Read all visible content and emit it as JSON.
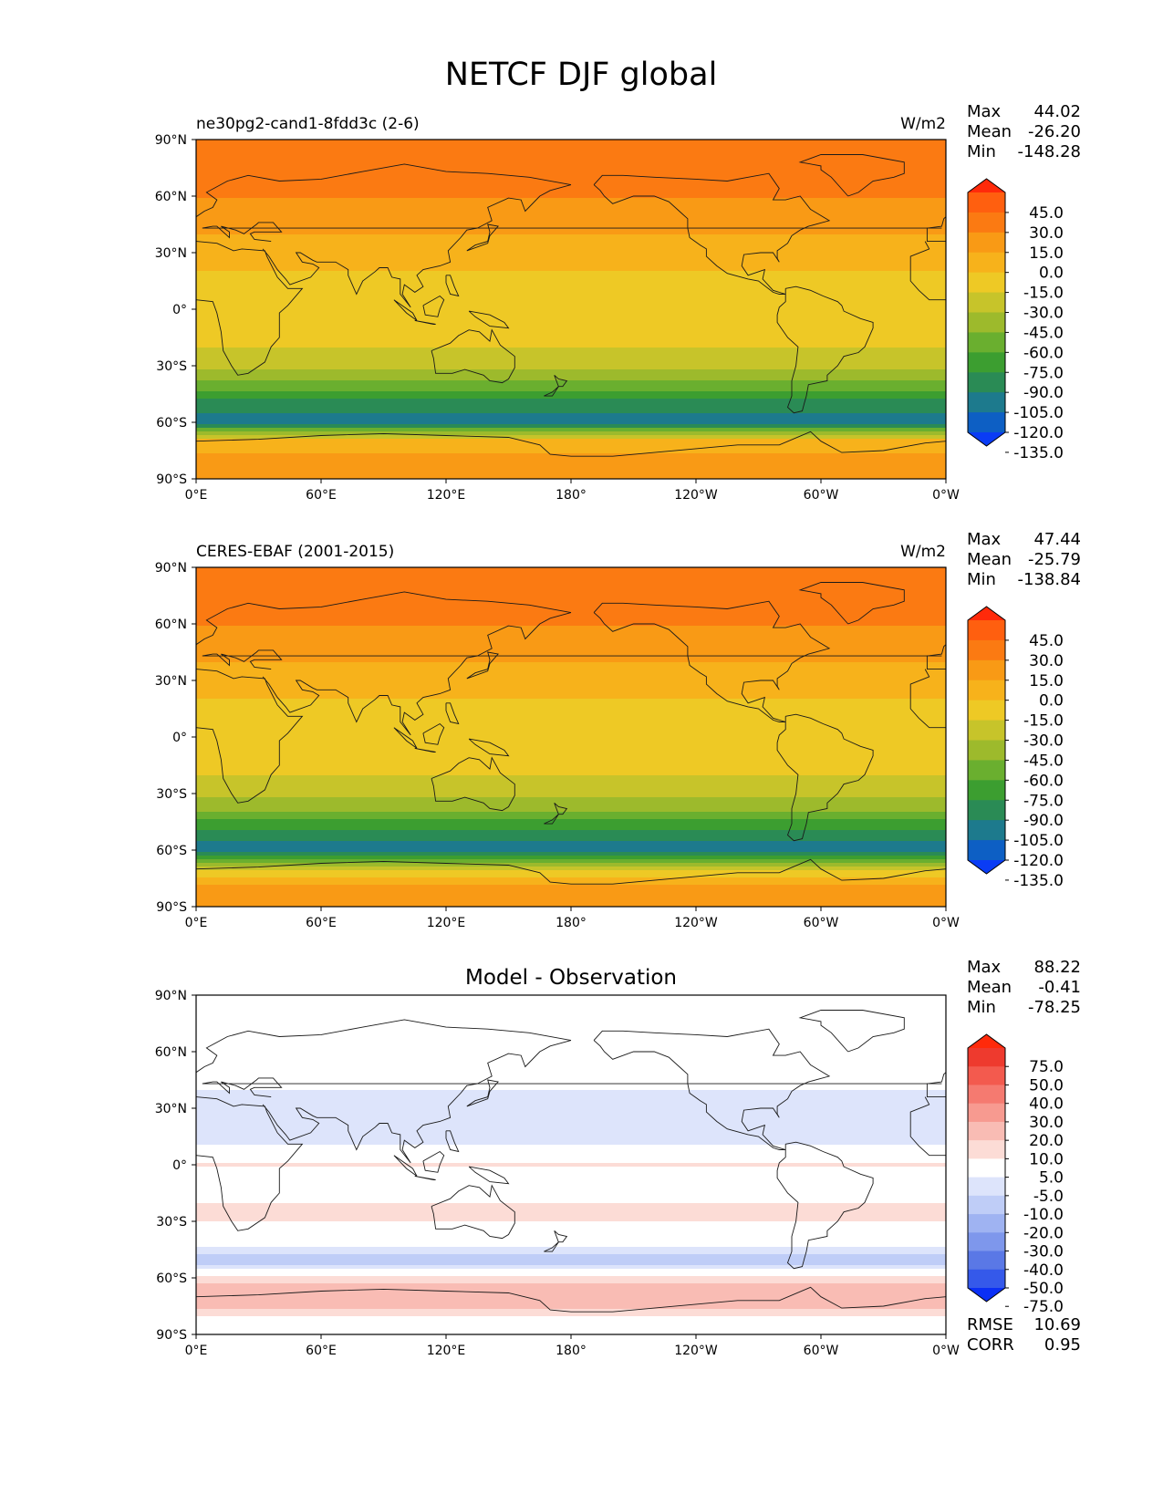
{
  "suptitle": "NETCF DJF global",
  "lon_ticks": [
    "0°E",
    "60°E",
    "120°E",
    "180°",
    "120°W",
    "60°W",
    "0°W"
  ],
  "lat_ticks": [
    "90°N",
    "60°N",
    "30°N",
    "0°",
    "30°S",
    "60°S",
    "90°S"
  ],
  "stat_labels": {
    "max": "Max",
    "mean": "Mean",
    "min": "Min",
    "rmse": "RMSE",
    "corr": "CORR"
  },
  "panels": [
    {
      "left_title": "ne30pg2-cand1-8fdd3c (2-6)",
      "center_title": "",
      "units": "W/m2",
      "stats": {
        "max": "44.02",
        "mean": "-26.20",
        "min": "-148.28"
      },
      "colorbar": {
        "ticks": [
          "45.0",
          "30.0",
          "15.0",
          "0.0",
          "-15.0",
          "-30.0",
          "-45.0",
          "-60.0",
          "-75.0",
          "-90.0",
          "-105.0",
          "-120.0",
          "-135.0"
        ],
        "colors": [
          "#ff2a0a",
          "#ff5f0f",
          "#fb7a12",
          "#f99a15",
          "#f7b21b",
          "#eec925",
          "#c7c42a",
          "#9dba2c",
          "#6aaf2f",
          "#3c9e30",
          "#2a8b55",
          "#1d7a8d",
          "#0d5fc4",
          "#0a3cf5"
        ]
      }
    },
    {
      "left_title": "CERES-EBAF (2001-2015)",
      "center_title": "",
      "units": "W/m2",
      "stats": {
        "max": "47.44",
        "mean": "-25.79",
        "min": "-138.84"
      },
      "colorbar": {
        "ticks": [
          "45.0",
          "30.0",
          "15.0",
          "0.0",
          "-15.0",
          "-30.0",
          "-45.0",
          "-60.0",
          "-75.0",
          "-90.0",
          "-105.0",
          "-120.0",
          "-135.0"
        ],
        "colors": [
          "#ff2a0a",
          "#ff5f0f",
          "#fb7a12",
          "#f99a15",
          "#f7b21b",
          "#eec925",
          "#c7c42a",
          "#9dba2c",
          "#6aaf2f",
          "#3c9e30",
          "#2a8b55",
          "#1d7a8d",
          "#0d5fc4",
          "#0a3cf5"
        ]
      }
    },
    {
      "left_title": "",
      "center_title": "Model - Observation",
      "units": "",
      "stats": {
        "max": "88.22",
        "mean": "-0.41",
        "min": "-78.25",
        "rmse": "10.69",
        "corr": "0.95"
      },
      "colorbar": {
        "ticks": [
          "75.0",
          "50.0",
          "40.0",
          "30.0",
          "20.0",
          "10.0",
          "5.0",
          "-5.0",
          "-10.0",
          "-20.0",
          "-30.0",
          "-40.0",
          "-50.0",
          "-75.0"
        ],
        "colors": [
          "#ff2a0a",
          "#ee3a2e",
          "#f35a4e",
          "#f57a70",
          "#f79a90",
          "#f9bcb4",
          "#fcdcd6",
          "#ffffff",
          "#dde4fb",
          "#bfcdf7",
          "#9fb3f2",
          "#7e97ec",
          "#5a78e6",
          "#3559ea",
          "#0a2ff5"
        ]
      }
    }
  ],
  "chart_data": [
    {
      "type": "heatmap",
      "title": "NETCF DJF global",
      "subtitle": "ne30pg2-cand1-8fdd3c (2-6)",
      "units": "W/m2",
      "x_ticks": [
        "0°E",
        "60°E",
        "120°E",
        "180°",
        "120°W",
        "60°W",
        "0°W"
      ],
      "y_ticks": [
        "90°N",
        "60°N",
        "30°N",
        "0°",
        "30°S",
        "60°S",
        "90°S"
      ],
      "xlim": [
        0,
        360
      ],
      "ylim": [
        -90,
        90
      ],
      "stats": {
        "max": 44.02,
        "mean": -26.2,
        "min": -148.28
      },
      "levels": [
        -135,
        -120,
        -105,
        -90,
        -75,
        -60,
        -45,
        -30,
        -15,
        0,
        15,
        30,
        45
      ],
      "zonal_profile_lat": [
        -90,
        -80,
        -70,
        -60,
        -50,
        -40,
        -30,
        -20,
        -10,
        0,
        10,
        20,
        30,
        40,
        50,
        60,
        70,
        80,
        90
      ],
      "zonal_profile_value": [
        10,
        8,
        -10,
        -110,
        -100,
        -65,
        -40,
        -30,
        -25,
        -25,
        -20,
        -15,
        -10,
        0,
        10,
        15,
        15,
        20,
        15
      ]
    },
    {
      "type": "heatmap",
      "title": "NETCF DJF global",
      "subtitle": "CERES-EBAF (2001-2015)",
      "units": "W/m2",
      "x_ticks": [
        "0°E",
        "60°E",
        "120°E",
        "180°",
        "120°W",
        "60°W",
        "0°W"
      ],
      "y_ticks": [
        "90°N",
        "60°N",
        "30°N",
        "0°",
        "30°S",
        "60°S",
        "90°S"
      ],
      "xlim": [
        0,
        360
      ],
      "ylim": [
        -90,
        90
      ],
      "stats": {
        "max": 47.44,
        "mean": -25.79,
        "min": -138.84
      },
      "levels": [
        -135,
        -120,
        -105,
        -90,
        -75,
        -60,
        -45,
        -30,
        -15,
        0,
        15,
        30,
        45
      ],
      "zonal_profile_lat": [
        -90,
        -80,
        -70,
        -60,
        -50,
        -40,
        -30,
        -20,
        -10,
        0,
        10,
        20,
        30,
        40,
        50,
        60,
        70,
        80,
        90
      ],
      "zonal_profile_value": [
        10,
        8,
        -30,
        -115,
        -95,
        -60,
        -40,
        -30,
        -25,
        -25,
        -20,
        -15,
        -10,
        0,
        10,
        15,
        15,
        20,
        15
      ]
    },
    {
      "type": "heatmap",
      "title": "Model - Observation",
      "x_ticks": [
        "0°E",
        "60°E",
        "120°E",
        "180°",
        "120°W",
        "60°W",
        "0°W"
      ],
      "y_ticks": [
        "90°N",
        "60°N",
        "30°N",
        "0°",
        "30°S",
        "60°S",
        "90°S"
      ],
      "xlim": [
        0,
        360
      ],
      "ylim": [
        -90,
        90
      ],
      "stats": {
        "max": 88.22,
        "mean": -0.41,
        "min": -78.25,
        "rmse": 10.69,
        "corr": 0.95
      },
      "levels": [
        -75,
        -50,
        -40,
        -30,
        -20,
        -10,
        -5,
        5,
        10,
        20,
        30,
        40,
        50,
        75
      ],
      "zonal_profile_lat": [
        -90,
        -80,
        -70,
        -60,
        -50,
        -40,
        -30,
        -20,
        -10,
        0,
        10,
        20,
        30,
        40,
        50,
        60,
        70,
        80,
        90
      ],
      "zonal_profile_value": [
        0,
        5,
        20,
        5,
        -15,
        0,
        5,
        5,
        0,
        5,
        -5,
        -10,
        -10,
        -5,
        0,
        0,
        0,
        0,
        0
      ]
    }
  ]
}
